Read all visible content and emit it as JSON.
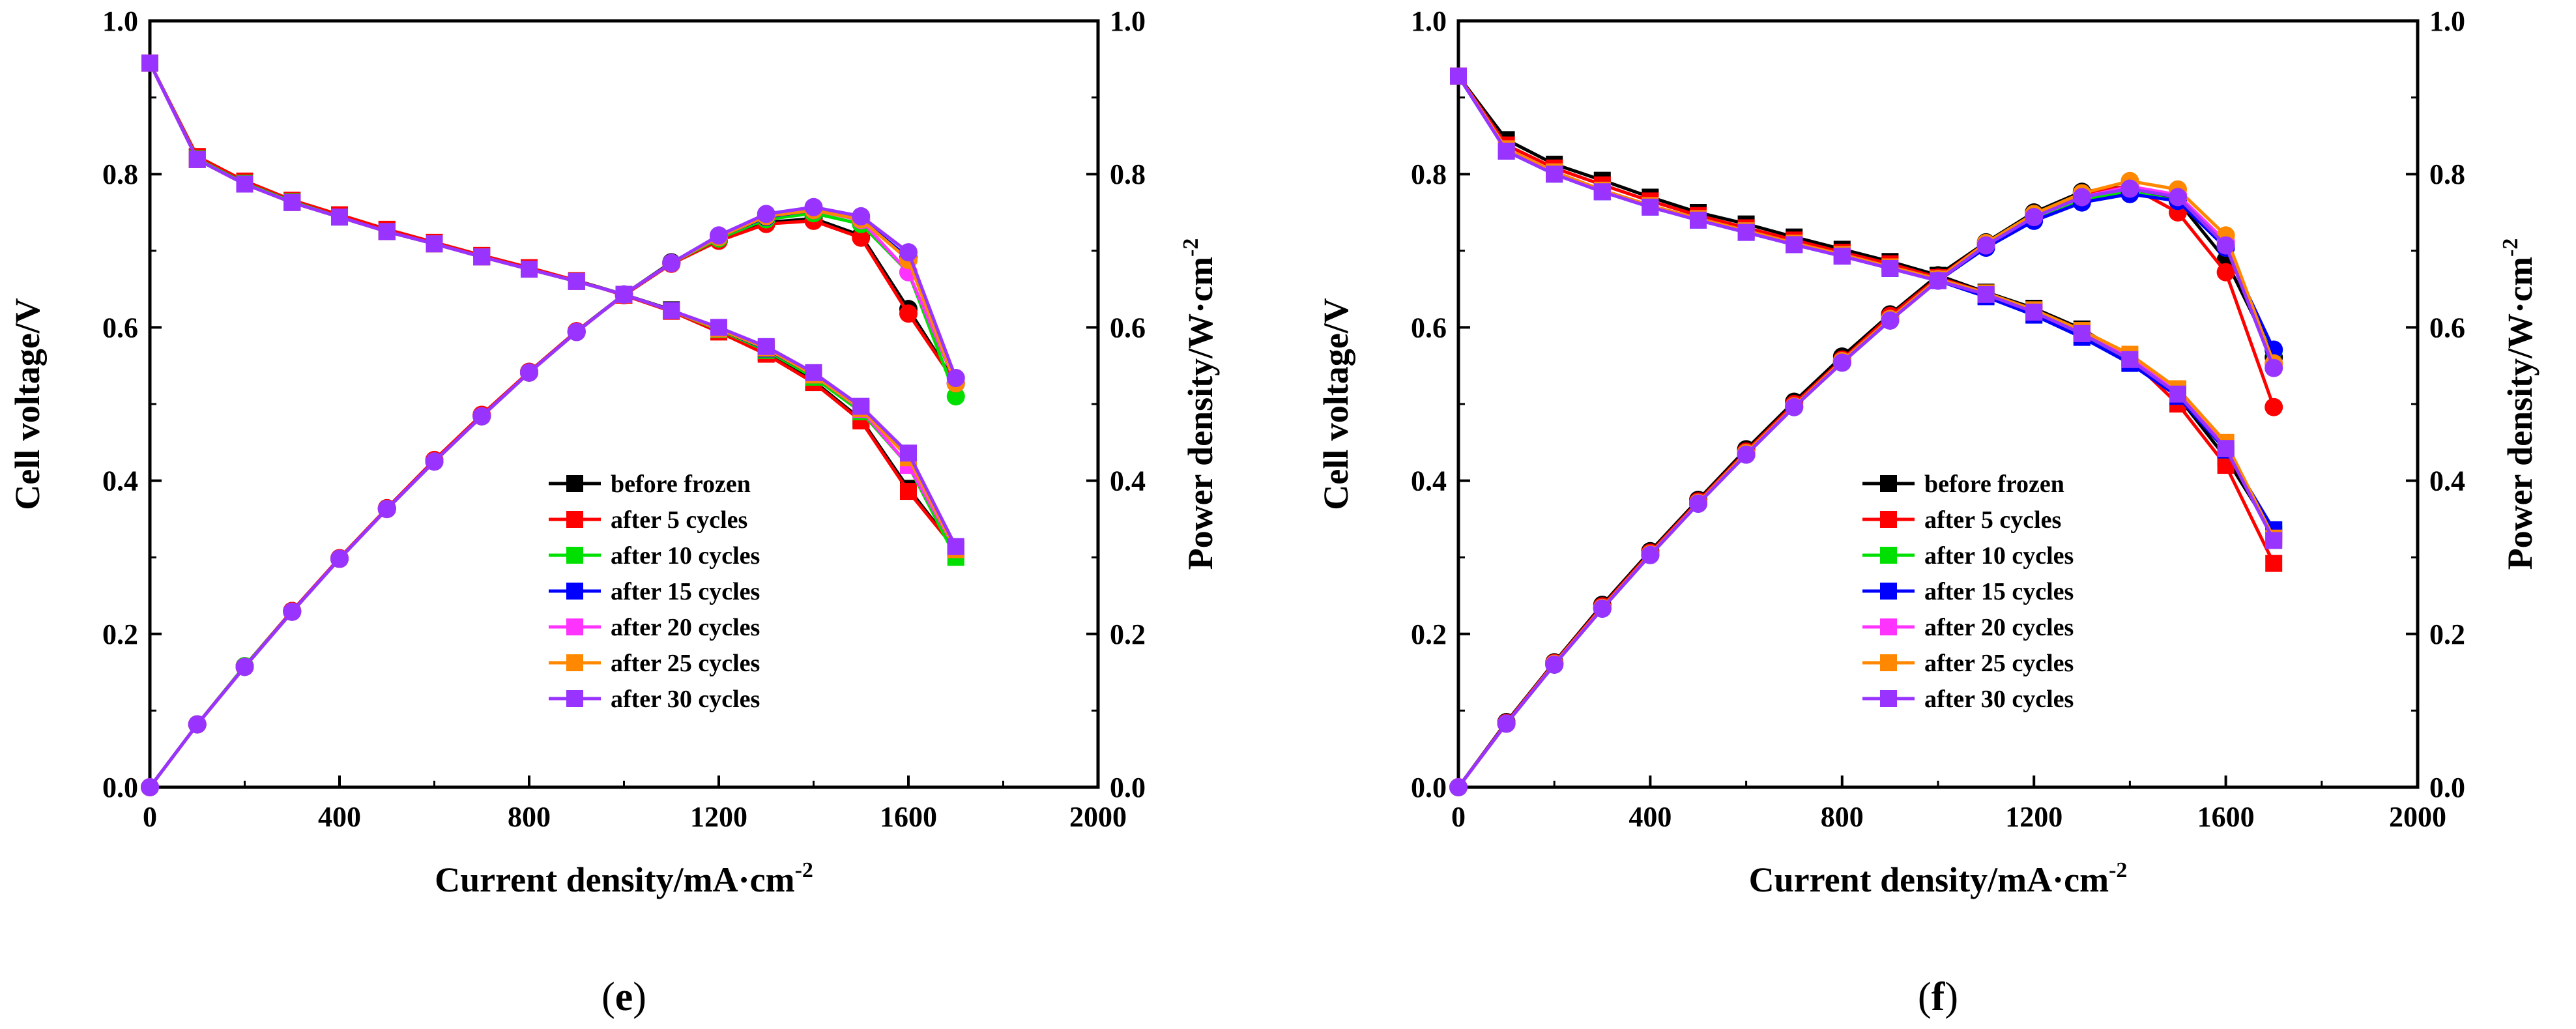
{
  "chart_data": [
    {
      "type": "line",
      "panel_label_open": "(",
      "panel_label_letter": "e",
      "panel_label_close": ")",
      "xlabel": "Current density/mA·cm",
      "xlabel_sup": "-2",
      "ylabel_left": "Cell voltage/V",
      "ylabel_right": "Power density/W·cm",
      "ylabel_right_sup": "-2",
      "xlim": [
        0,
        2000
      ],
      "ylim_left": [
        0,
        1.0
      ],
      "ylim_right": [
        0,
        1.0
      ],
      "x_ticks": [
        "0",
        "400",
        "800",
        "1200",
        "1600",
        "2000"
      ],
      "y_ticks_left": [
        "0.0",
        "0.2",
        "0.4",
        "0.6",
        "0.8",
        "1.0"
      ],
      "y_ticks_right": [
        "0.0",
        "0.2",
        "0.4",
        "0.6",
        "0.8",
        "1.0"
      ],
      "legend_position": "center-right",
      "x": [
        0,
        100,
        200,
        300,
        400,
        500,
        600,
        700,
        800,
        900,
        1000,
        1100,
        1200,
        1300,
        1400,
        1500,
        1600,
        1700
      ],
      "series": [
        {
          "name": "before frozen",
          "color": "#000000",
          "voltage": [
            0.945,
            0.822,
            0.79,
            0.765,
            0.746,
            0.727,
            0.71,
            0.693,
            0.677,
            0.661,
            0.643,
            0.623,
            0.596,
            0.567,
            0.53,
            0.48,
            0.39,
            0.31
          ],
          "power": [
            0.0,
            0.082,
            0.158,
            0.23,
            0.298,
            0.364,
            0.426,
            0.485,
            0.542,
            0.595,
            0.643,
            0.685,
            0.715,
            0.737,
            0.742,
            0.72,
            0.624,
            0.527
          ]
        },
        {
          "name": "after 5 cycles",
          "color": "#ff0000",
          "voltage": [
            0.945,
            0.823,
            0.791,
            0.766,
            0.747,
            0.728,
            0.711,
            0.694,
            0.678,
            0.661,
            0.642,
            0.621,
            0.594,
            0.565,
            0.528,
            0.478,
            0.386,
            0.31
          ],
          "power": [
            0.0,
            0.082,
            0.158,
            0.23,
            0.299,
            0.364,
            0.427,
            0.486,
            0.542,
            0.595,
            0.642,
            0.683,
            0.713,
            0.735,
            0.739,
            0.717,
            0.618,
            0.527
          ]
        },
        {
          "name": "after 10 cycles",
          "color": "#00e000",
          "voltage": [
            0.945,
            0.82,
            0.788,
            0.764,
            0.744,
            0.725,
            0.709,
            0.692,
            0.676,
            0.66,
            0.643,
            0.622,
            0.597,
            0.57,
            0.535,
            0.49,
            0.42,
            0.3
          ],
          "power": [
            0.0,
            0.082,
            0.158,
            0.229,
            0.298,
            0.363,
            0.425,
            0.484,
            0.541,
            0.594,
            0.643,
            0.684,
            0.716,
            0.741,
            0.749,
            0.735,
            0.672,
            0.51
          ]
        },
        {
          "name": "after 15 cycles",
          "color": "#0000ff",
          "voltage": [
            0.945,
            0.819,
            0.787,
            0.763,
            0.744,
            0.725,
            0.709,
            0.692,
            0.676,
            0.66,
            0.643,
            0.622,
            0.598,
            0.572,
            0.538,
            0.494,
            0.432,
            0.31
          ],
          "power": [
            0.0,
            0.082,
            0.157,
            0.229,
            0.298,
            0.363,
            0.425,
            0.484,
            0.541,
            0.594,
            0.643,
            0.684,
            0.718,
            0.744,
            0.753,
            0.741,
            0.691,
            0.527
          ]
        },
        {
          "name": "after 20 cycles",
          "color": "#ff33ff",
          "voltage": [
            0.945,
            0.819,
            0.787,
            0.763,
            0.744,
            0.725,
            0.709,
            0.692,
            0.676,
            0.66,
            0.643,
            0.622,
            0.598,
            0.573,
            0.538,
            0.493,
            0.42,
            0.31
          ],
          "power": [
            0.0,
            0.082,
            0.157,
            0.229,
            0.298,
            0.363,
            0.425,
            0.484,
            0.541,
            0.594,
            0.643,
            0.684,
            0.718,
            0.745,
            0.753,
            0.74,
            0.672,
            0.527
          ]
        },
        {
          "name": "after 25 cycles",
          "color": "#ff8800",
          "voltage": [
            0.945,
            0.819,
            0.787,
            0.763,
            0.744,
            0.725,
            0.709,
            0.692,
            0.676,
            0.66,
            0.643,
            0.622,
            0.598,
            0.573,
            0.538,
            0.494,
            0.43,
            0.31
          ],
          "power": [
            0.0,
            0.082,
            0.157,
            0.229,
            0.298,
            0.363,
            0.425,
            0.484,
            0.541,
            0.594,
            0.643,
            0.684,
            0.718,
            0.745,
            0.753,
            0.741,
            0.688,
            0.527
          ]
        },
        {
          "name": "after 30 cycles",
          "color": "#9933ff",
          "voltage": [
            0.945,
            0.819,
            0.787,
            0.763,
            0.744,
            0.725,
            0.709,
            0.692,
            0.676,
            0.66,
            0.643,
            0.622,
            0.6,
            0.575,
            0.541,
            0.497,
            0.436,
            0.314
          ],
          "power": [
            0.0,
            0.082,
            0.157,
            0.229,
            0.298,
            0.363,
            0.425,
            0.484,
            0.541,
            0.594,
            0.643,
            0.684,
            0.72,
            0.748,
            0.757,
            0.745,
            0.698,
            0.534
          ]
        }
      ]
    },
    {
      "type": "line",
      "panel_label_open": "(",
      "panel_label_letter": "f",
      "panel_label_close": ")",
      "xlabel": "Current density/mA·cm",
      "xlabel_sup": "-2",
      "ylabel_left": "Cell voltage/V",
      "ylabel_right": "Power density/W·cm",
      "ylabel_right_sup": "-2",
      "xlim": [
        0,
        2000
      ],
      "ylim_left": [
        0,
        1.0
      ],
      "ylim_right": [
        0,
        1.0
      ],
      "x_ticks": [
        "0",
        "400",
        "800",
        "1200",
        "1600",
        "2000"
      ],
      "y_ticks_left": [
        "0.0",
        "0.2",
        "0.4",
        "0.6",
        "0.8",
        "1.0"
      ],
      "y_ticks_right": [
        "0.0",
        "0.2",
        "0.4",
        "0.6",
        "0.8",
        "1.0"
      ],
      "legend_position": "center-right",
      "x": [
        0,
        100,
        200,
        300,
        400,
        500,
        600,
        700,
        800,
        900,
        1000,
        1100,
        1200,
        1300,
        1400,
        1500,
        1600,
        1700
      ],
      "series": [
        {
          "name": "before frozen",
          "color": "#000000",
          "voltage": [
            0.928,
            0.845,
            0.813,
            0.792,
            0.77,
            0.75,
            0.735,
            0.718,
            0.702,
            0.686,
            0.668,
            0.646,
            0.625,
            0.598,
            0.56,
            0.51,
            0.43,
            0.33
          ],
          "power": [
            0.0,
            0.085,
            0.163,
            0.238,
            0.308,
            0.375,
            0.441,
            0.503,
            0.562,
            0.617,
            0.668,
            0.711,
            0.75,
            0.777,
            0.784,
            0.765,
            0.688,
            0.561
          ]
        },
        {
          "name": "after 5 cycles",
          "color": "#ff0000",
          "voltage": [
            0.928,
            0.838,
            0.808,
            0.786,
            0.765,
            0.746,
            0.73,
            0.714,
            0.698,
            0.683,
            0.665,
            0.645,
            0.622,
            0.596,
            0.56,
            0.5,
            0.42,
            0.292
          ],
          "power": [
            0.0,
            0.084,
            0.162,
            0.236,
            0.306,
            0.373,
            0.438,
            0.5,
            0.558,
            0.615,
            0.665,
            0.71,
            0.746,
            0.775,
            0.784,
            0.75,
            0.672,
            0.496
          ]
        },
        {
          "name": "after 10 cycles",
          "color": "#00e000",
          "voltage": [
            0.928,
            0.832,
            0.802,
            0.779,
            0.759,
            0.742,
            0.726,
            0.71,
            0.695,
            0.679,
            0.663,
            0.642,
            0.619,
            0.59,
            0.555,
            0.51,
            0.44,
            0.335
          ],
          "power": [
            0.0,
            0.083,
            0.16,
            0.234,
            0.304,
            0.371,
            0.436,
            0.497,
            0.556,
            0.611,
            0.663,
            0.706,
            0.743,
            0.767,
            0.777,
            0.765,
            0.704,
            0.57
          ]
        },
        {
          "name": "after 15 cycles",
          "color": "#0000ff",
          "voltage": [
            0.928,
            0.83,
            0.8,
            0.777,
            0.757,
            0.74,
            0.724,
            0.708,
            0.693,
            0.677,
            0.661,
            0.64,
            0.616,
            0.587,
            0.553,
            0.51,
            0.44,
            0.336
          ],
          "power": [
            0.0,
            0.083,
            0.16,
            0.233,
            0.303,
            0.37,
            0.434,
            0.496,
            0.554,
            0.609,
            0.661,
            0.704,
            0.739,
            0.763,
            0.774,
            0.765,
            0.704,
            0.571
          ]
        },
        {
          "name": "after 20 cycles",
          "color": "#ff33ff",
          "voltage": [
            0.928,
            0.833,
            0.803,
            0.779,
            0.759,
            0.742,
            0.726,
            0.71,
            0.695,
            0.679,
            0.663,
            0.644,
            0.62,
            0.592,
            0.56,
            0.515,
            0.445,
            0.325
          ],
          "power": [
            0.0,
            0.083,
            0.161,
            0.234,
            0.304,
            0.371,
            0.436,
            0.497,
            0.556,
            0.611,
            0.663,
            0.708,
            0.744,
            0.77,
            0.784,
            0.773,
            0.712,
            0.553
          ]
        },
        {
          "name": "after 25 cycles",
          "color": "#ff8800",
          "voltage": [
            0.928,
            0.833,
            0.803,
            0.779,
            0.759,
            0.742,
            0.726,
            0.71,
            0.695,
            0.679,
            0.663,
            0.645,
            0.623,
            0.596,
            0.565,
            0.52,
            0.45,
            0.325
          ],
          "power": [
            0.0,
            0.083,
            0.161,
            0.234,
            0.304,
            0.371,
            0.436,
            0.497,
            0.556,
            0.611,
            0.663,
            0.71,
            0.748,
            0.775,
            0.791,
            0.78,
            0.72,
            0.553
          ]
        },
        {
          "name": "after 30 cycles",
          "color": "#9933ff",
          "voltage": [
            0.928,
            0.83,
            0.8,
            0.777,
            0.757,
            0.74,
            0.724,
            0.708,
            0.693,
            0.677,
            0.661,
            0.643,
            0.62,
            0.592,
            0.558,
            0.513,
            0.442,
            0.322
          ],
          "power": [
            0.0,
            0.083,
            0.16,
            0.233,
            0.303,
            0.37,
            0.434,
            0.496,
            0.554,
            0.609,
            0.661,
            0.707,
            0.744,
            0.77,
            0.781,
            0.77,
            0.707,
            0.547
          ]
        }
      ]
    }
  ]
}
